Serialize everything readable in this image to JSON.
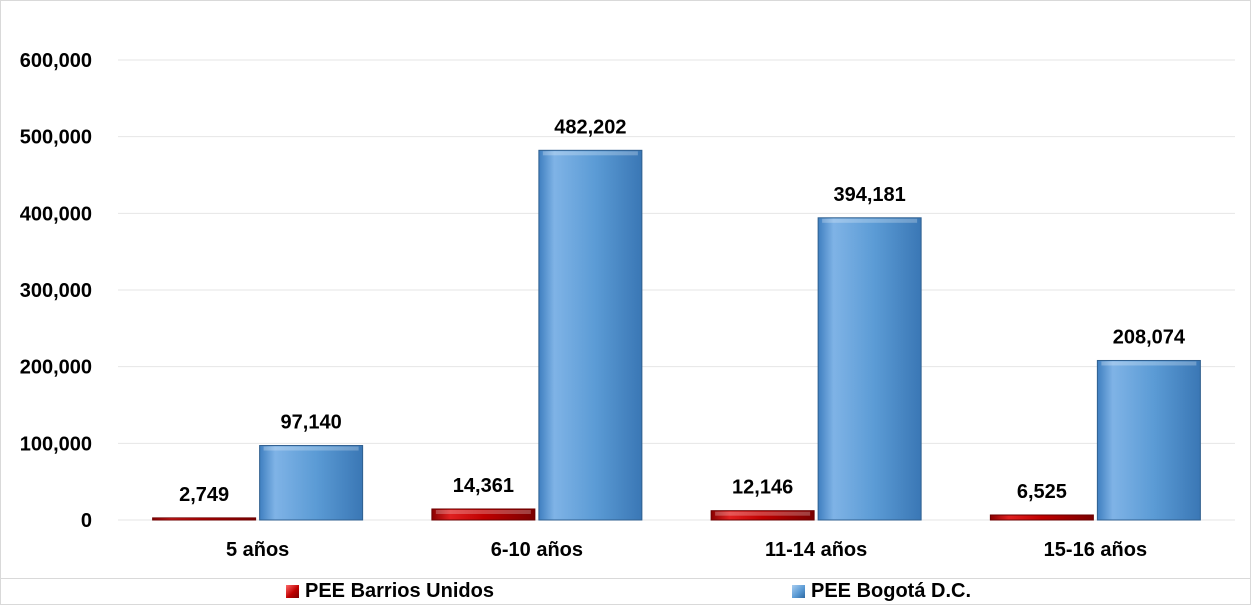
{
  "chart_data": {
    "type": "bar",
    "categories": [
      "5 años",
      "6-10 años",
      "11-14 años",
      "15-16 años"
    ],
    "series": [
      {
        "name": "PEE Barrios Unidos",
        "values": [
          2749,
          14361,
          12146,
          6525
        ],
        "value_labels": [
          "2,749",
          "14,361",
          "12,146",
          "6,525"
        ],
        "color": "#c00000"
      },
      {
        "name": "PEE Bogotá D.C.",
        "values": [
          97140,
          482202,
          394181,
          208074
        ],
        "value_labels": [
          "97,140",
          "482,202",
          "394,181",
          "208,074"
        ],
        "color": "#5b9bd5"
      }
    ],
    "y_ticks": [
      0,
      100000,
      200000,
      300000,
      400000,
      500000,
      600000
    ],
    "y_tick_labels": [
      "0",
      "100,000",
      "200,000",
      "300,000",
      "400,000",
      "500,000",
      "600,000"
    ],
    "ylim": [
      0,
      600000
    ],
    "grid": true,
    "legend_position": "bottom"
  }
}
